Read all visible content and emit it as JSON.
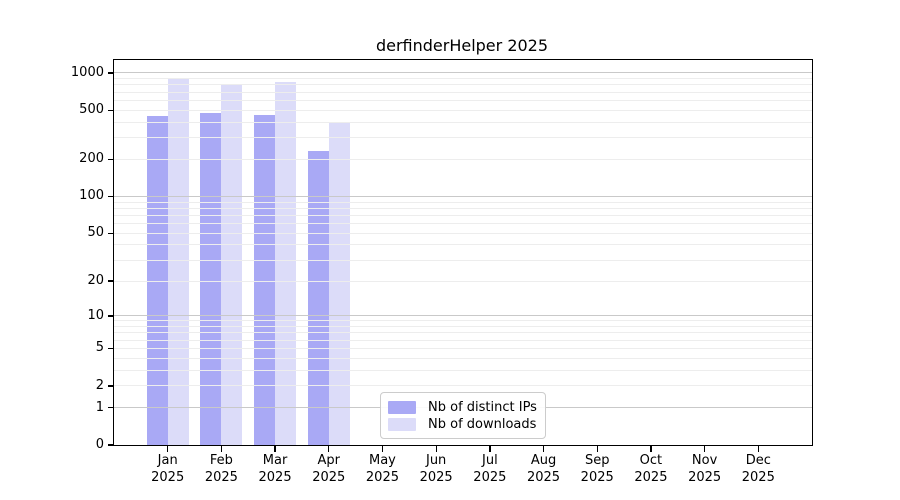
{
  "chart_data": {
    "type": "bar",
    "title": "derfinderHelper 2025",
    "categories": [
      "Jan",
      "Feb",
      "Mar",
      "Apr",
      "May",
      "Jun",
      "Jul",
      "Aug",
      "Sep",
      "Oct",
      "Nov",
      "Dec"
    ],
    "category_year": "2025",
    "series": [
      {
        "name": "Nb of distinct IPs",
        "color": "#a9a9f5",
        "values": [
          450,
          470,
          460,
          235,
          null,
          null,
          null,
          null,
          null,
          null,
          null,
          null
        ]
      },
      {
        "name": "Nb of downloads",
        "color": "#dcdcf9",
        "values": [
          910,
          800,
          850,
          400,
          null,
          null,
          null,
          null,
          null,
          null,
          null,
          null
        ]
      }
    ],
    "yscale": "log10(1+x)",
    "yticks": [
      0,
      1,
      2,
      5,
      10,
      20,
      50,
      100,
      200,
      500,
      1000
    ],
    "ylim": [
      0,
      1270
    ],
    "xlabel": "",
    "ylabel": "",
    "grid": "horizontal, log minor + major, drawn above bars",
    "legend_position": "inside-bottom-center-left"
  },
  "colors": {
    "background": "#ffffff",
    "axis": "#000000",
    "grid_major": "#c9c9c9",
    "grid_minor": "#ededed",
    "bar_distinct_ips": "#a9a9f5",
    "bar_downloads": "#dcdcf9",
    "legend_border": "#cccccc"
  }
}
